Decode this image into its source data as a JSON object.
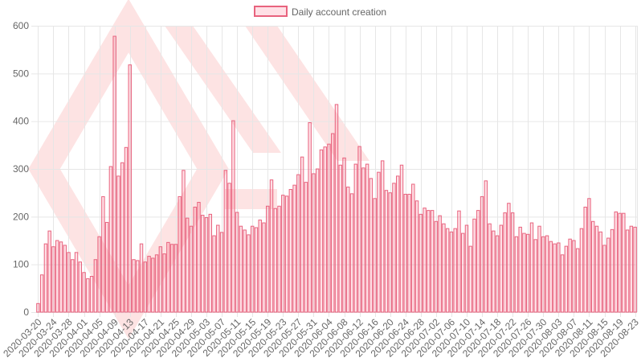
{
  "chart_data": {
    "type": "bar",
    "legend": {
      "label": "Daily account creation",
      "position": "top"
    },
    "colors": {
      "bar_fill": "rgba(255, 99, 132, 0.2)",
      "bar_stroke": "#e8637e",
      "grid": "#e6e6e6",
      "watermark": "#fde3e3"
    },
    "ylim": [
      0,
      600
    ],
    "y_ticks": [
      0,
      100,
      200,
      300,
      400,
      500,
      600
    ],
    "x_tick_labels": [
      "2020-03-20",
      "2020-03-24",
      "2020-03-28",
      "2020-04-01",
      "2020-04-05",
      "2020-04-09",
      "2020-04-13",
      "2020-04-17",
      "2020-04-21",
      "2020-04-25",
      "2020-04-29",
      "2020-05-03",
      "2020-05-07",
      "2020-05-11",
      "2020-05-15",
      "2020-05-19",
      "2020-05-23",
      "2020-05-27",
      "2020-05-31",
      "2020-06-04",
      "2020-06-08",
      "2020-06-12",
      "2020-06-16",
      "2020-06-20",
      "2020-06-24",
      "2020-06-28",
      "2020-07-02",
      "2020-07-06",
      "2020-07-10",
      "2020-07-14",
      "2020-07-18",
      "2020-07-22",
      "2020-07-26",
      "2020-07-30",
      "2020-08-03",
      "2020-08-07",
      "2020-08-11",
      "2020-08-15",
      "2020-08-19",
      "2020-08-23"
    ],
    "x_start": "2020-03-20",
    "x_end": "2020-08-24",
    "values": [
      18,
      78,
      143,
      170,
      137,
      150,
      147,
      140,
      125,
      110,
      125,
      105,
      83,
      70,
      75,
      110,
      158,
      242,
      188,
      305,
      578,
      285,
      313,
      345,
      518,
      110,
      108,
      143,
      105,
      117,
      113,
      120,
      137,
      122,
      146,
      142,
      142,
      242,
      297,
      197,
      180,
      220,
      230,
      203,
      198,
      205,
      160,
      182,
      167,
      297,
      270,
      401,
      209,
      180,
      172,
      162,
      180,
      177,
      193,
      187,
      222,
      277,
      217,
      222,
      245,
      243,
      257,
      266,
      288,
      325,
      272,
      397,
      290,
      300,
      340,
      346,
      352,
      374,
      435,
      308,
      323,
      262,
      248,
      310,
      347,
      302,
      310,
      280,
      238,
      293,
      317,
      255,
      250,
      270,
      285,
      308,
      247,
      247,
      268,
      233,
      205,
      218,
      213,
      213,
      190,
      202,
      185,
      175,
      168,
      175,
      212,
      165,
      182,
      138,
      195,
      213,
      242,
      275,
      185,
      170,
      160,
      182,
      208,
      228,
      208,
      158,
      178,
      165,
      163,
      187,
      152,
      180,
      158,
      160,
      148,
      143,
      145,
      120,
      138,
      153,
      150,
      133,
      175,
      220,
      238,
      190,
      180,
      168,
      140,
      155,
      173,
      210,
      207,
      207,
      172,
      180,
      178
    ]
  }
}
